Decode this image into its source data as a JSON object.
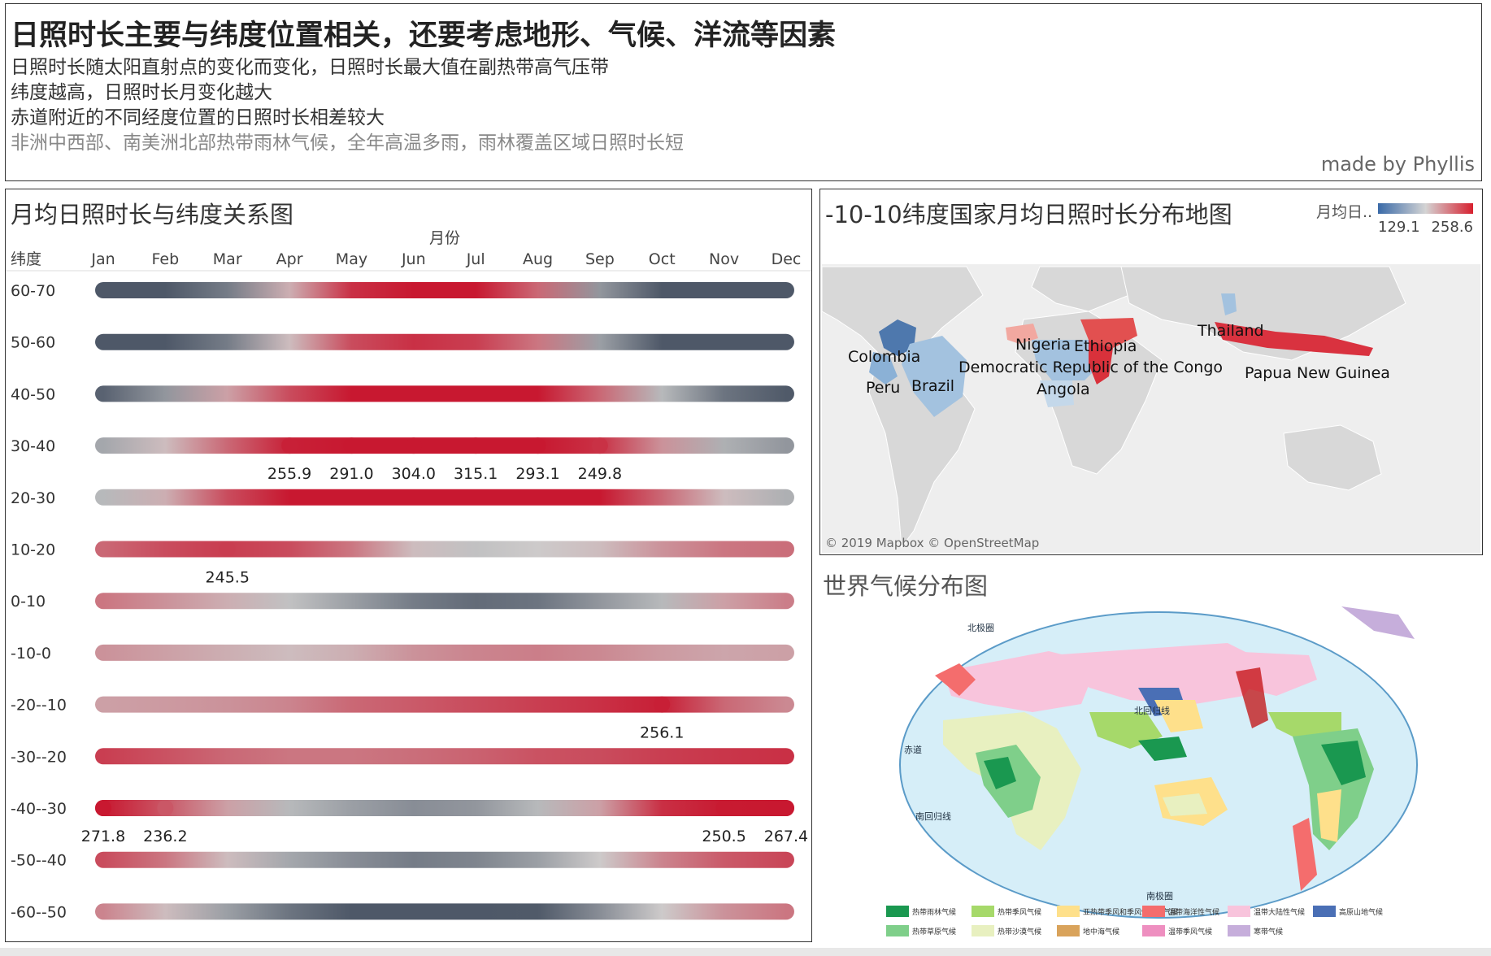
{
  "header": {
    "title": "日照时长主要与纬度位置相关，还要考虑地形、气候、洋流等因素",
    "lines": [
      "日照时长随太阳直射点的变化而变化，日照时长最大值在副热带高气压带",
      "纬度越高，日照时长月变化越大",
      "赤道附近的不同经度位置的日照时长相差较大",
      "非洲中西部、南美洲北部热带雨林气候，全年高温多雨，雨林覆盖区域日照时长短"
    ],
    "credit": "made by Phyllis"
  },
  "chart": {
    "title": "月均日照时长与纬度关系图"
  },
  "chart_data": [
    {
      "type": "heatmap",
      "title": "月均日照时长与纬度关系图",
      "xlabel": "月份",
      "ylabel": "纬度",
      "x": [
        "Jan",
        "Feb",
        "Mar",
        "Apr",
        "May",
        "Jun",
        "Jul",
        "Aug",
        "Sep",
        "Oct",
        "Nov",
        "Dec"
      ],
      "y": [
        "60-70",
        "50-60",
        "40-50",
        "30-40",
        "20-30",
        "10-20",
        "0-10",
        "-10-0",
        "-20--10",
        "-30--20",
        "-40--30",
        "-50--40",
        "-60--50"
      ],
      "color_range": [
        129.1,
        258.6
      ],
      "color_scale": [
        "#4e6a9a",
        "#c8c8c8",
        "#d7202f"
      ],
      "rows": [
        {
          "band": "60-70",
          "values": [
            30,
            75,
            150,
            205,
            250,
            270,
            265,
            230,
            165,
            105,
            50,
            25
          ]
        },
        {
          "band": "50-60",
          "values": [
            55,
            90,
            150,
            200,
            240,
            250,
            245,
            225,
            170,
            120,
            75,
            50
          ]
        },
        {
          "band": "40-50",
          "values": [
            135,
            165,
            210,
            240,
            270,
            285,
            295,
            275,
            230,
            185,
            145,
            130
          ]
        },
        {
          "band": "30-40",
          "values": [
            175,
            200,
            230,
            255.9,
            291.0,
            304.0,
            315.1,
            293.1,
            249.8,
            215,
            180,
            165
          ]
        },
        {
          "band": "20-30",
          "values": [
            185,
            205,
            240,
            260,
            280,
            285,
            285,
            280,
            260,
            230,
            200,
            180
          ]
        },
        {
          "band": "10-20",
          "values": [
            230,
            240,
            245.5,
            240,
            225,
            200,
            190,
            195,
            200,
            215,
            225,
            228
          ]
        },
        {
          "band": "0-10",
          "values": [
            225,
            215,
            205,
            190,
            170,
            150,
            140,
            145,
            165,
            185,
            210,
            222
          ]
        },
        {
          "band": "-10-0",
          "values": [
            215,
            210,
            205,
            200,
            205,
            215,
            220,
            222,
            218,
            212,
            208,
            210
          ]
        },
        {
          "band": "-20--10",
          "values": [
            210,
            212,
            215,
            220,
            230,
            235,
            240,
            245,
            250,
            256.1,
            230,
            218
          ]
        },
        {
          "band": "-30--20",
          "values": [
            245,
            238,
            230,
            225,
            225,
            228,
            232,
            238,
            240,
            245,
            248,
            250
          ]
        },
        {
          "band": "-40--30",
          "values": [
            271.8,
            236.2,
            210,
            185,
            170,
            160,
            165,
            185,
            210,
            250.5,
            258,
            267.4
          ]
        },
        {
          "band": "-50--40",
          "values": [
            240,
            225,
            200,
            175,
            160,
            150,
            155,
            170,
            195,
            220,
            235,
            242
          ]
        },
        {
          "band": "-60--50",
          "values": [
            220,
            200,
            170,
            145,
            120,
            100,
            105,
            130,
            160,
            195,
            215,
            225
          ]
        }
      ],
      "labels": [
        {
          "band": "30-40",
          "months": [
            "Apr",
            "May",
            "Jun",
            "Jul",
            "Aug",
            "Sep"
          ],
          "texts": [
            "255.9",
            "291.0",
            "304.0",
            "315.1",
            "293.1",
            "249.8"
          ]
        },
        {
          "band": "10-20",
          "months": [
            "Mar"
          ],
          "texts": [
            "245.5"
          ]
        },
        {
          "band": "-20--10",
          "months": [
            "Oct"
          ],
          "texts": [
            "256.1"
          ]
        },
        {
          "band": "-40--30",
          "months": [
            "Jan",
            "Feb",
            "Nov",
            "Dec"
          ],
          "texts": [
            "271.8",
            "236.2",
            "250.5",
            "267.4"
          ]
        }
      ]
    },
    {
      "type": "map",
      "title": "-10-10纬度国家月均日照时长分布地图",
      "legend": {
        "title": "月均日..",
        "min": "129.1",
        "max": "258.6"
      },
      "countries": [
        {
          "name": "Colombia",
          "level": "low"
        },
        {
          "name": "Brazil",
          "level": "low"
        },
        {
          "name": "Peru",
          "level": "low"
        },
        {
          "name": "Nigeria",
          "level": "high"
        },
        {
          "name": "Ethiopia",
          "level": "high"
        },
        {
          "name": "Democratic Republic of the Congo",
          "level": "mid"
        },
        {
          "name": "Angola",
          "level": "low"
        },
        {
          "name": "Thailand",
          "level": "low"
        },
        {
          "name": "Papua New Guinea",
          "level": "high"
        }
      ],
      "attribution": "© 2019 Mapbox © OpenStreetMap"
    }
  ],
  "map": {
    "title": "-10-10纬度国家月均日照时长分布地图",
    "legend_title": "月均日..",
    "legend_min": "129.1",
    "legend_max": "258.6",
    "attribution": "© 2019 Mapbox © OpenStreetMap"
  },
  "climate": {
    "title": "世界气候分布图",
    "map_labels": [
      "北极圈",
      "北回归线",
      "赤道",
      "南回归线",
      "南极圈"
    ],
    "legend": [
      {
        "label": "热带雨林气候",
        "color": "#1a9850"
      },
      {
        "label": "热带季风气候",
        "color": "#a6d96a"
      },
      {
        "label": "亚热带季风和季风性湿润气候",
        "color": "#fee08b"
      },
      {
        "label": "温带海洋性气候",
        "color": "#f46d6d"
      },
      {
        "label": "温带大陆性气候",
        "color": "#f8c4dc"
      },
      {
        "label": "高原山地气候",
        "color": "#4a6fb5"
      },
      {
        "label": "热带草原气候",
        "color": "#7fcf8a"
      },
      {
        "label": "热带沙漠气候",
        "color": "#e8f0c0"
      },
      {
        "label": "地中海气候",
        "color": "#d9a35b"
      },
      {
        "label": "温带季风气候",
        "color": "#ee8fc0"
      },
      {
        "label": "寒带气候",
        "color": "#c6aedb"
      }
    ]
  }
}
